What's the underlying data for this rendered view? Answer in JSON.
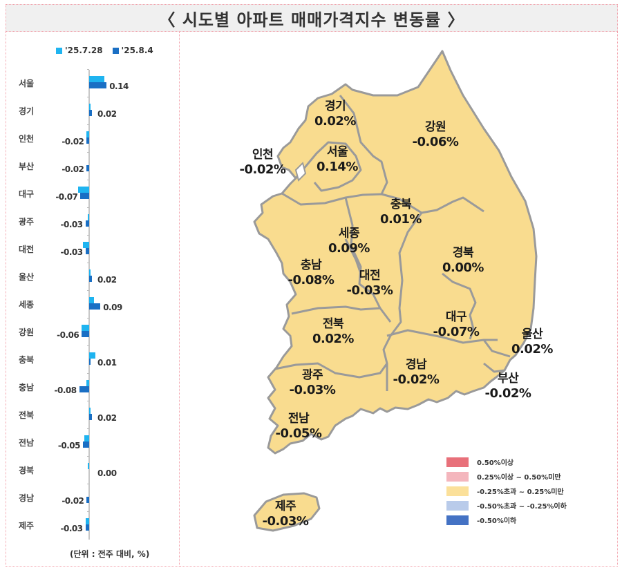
{
  "title": "〈 시도별 아파트 매매가격지수 변동률 〉",
  "chart_data": [
    {
      "type": "bar",
      "orientation": "horizontal",
      "title": "시도별 아파트 매매가격지수 변동률",
      "unit_note": "(단위 : 전주 대비, %)",
      "legend_position": "top",
      "categories": [
        "서울",
        "경기",
        "인천",
        "부산",
        "대구",
        "광주",
        "대전",
        "울산",
        "세종",
        "강원",
        "충북",
        "충남",
        "전북",
        "전남",
        "경북",
        "경남",
        "제주"
      ],
      "series": [
        {
          "name": "'25.7.28",
          "color": "#1fb4f0",
          "values": [
            0.12,
            0.01,
            -0.02,
            0.0,
            -0.09,
            -0.01,
            -0.05,
            0.01,
            0.04,
            -0.06,
            0.05,
            -0.02,
            0.01,
            -0.04,
            -0.01,
            0.0,
            -0.03
          ]
        },
        {
          "name": "'25.8.4",
          "color": "#1a6fc4",
          "values": [
            0.14,
            0.02,
            -0.02,
            -0.02,
            -0.07,
            -0.03,
            -0.03,
            0.02,
            0.09,
            -0.06,
            0.01,
            -0.08,
            0.02,
            -0.05,
            0.0,
            -0.02,
            -0.03
          ]
        }
      ],
      "data_labels": [
        "0.14",
        "0.02",
        "-0.02",
        "-0.02",
        "-0.07",
        "-0.03",
        "-0.03",
        "0.02",
        "0.09",
        "-0.06",
        "0.01",
        "-0.08",
        "0.02",
        "-0.05",
        "0.00",
        "-0.02",
        "-0.03"
      ],
      "grid": false
    },
    {
      "type": "choropleth",
      "title": "시도별 변동률 지도",
      "regions": [
        {
          "name": "경기",
          "value": "0.02%"
        },
        {
          "name": "강원",
          "value": "-0.06%"
        },
        {
          "name": "인천",
          "value": "-0.02%"
        },
        {
          "name": "서울",
          "value": "0.14%"
        },
        {
          "name": "충북",
          "value": "0.01%"
        },
        {
          "name": "세종",
          "value": "0.09%"
        },
        {
          "name": "경북",
          "value": "0.00%"
        },
        {
          "name": "충남",
          "value": "-0.08%"
        },
        {
          "name": "대전",
          "value": "-0.03%"
        },
        {
          "name": "전북",
          "value": "0.02%"
        },
        {
          "name": "대구",
          "value": "-0.07%"
        },
        {
          "name": "울산",
          "value": "0.02%"
        },
        {
          "name": "경남",
          "value": "-0.02%"
        },
        {
          "name": "부산",
          "value": "-0.02%"
        },
        {
          "name": "광주",
          "value": "-0.03%"
        },
        {
          "name": "전남",
          "value": "-0.05%"
        },
        {
          "name": "제주",
          "value": "-0.03%"
        }
      ],
      "legend": [
        {
          "label": "0.50%이상",
          "color": "#e8707a"
        },
        {
          "label": "0.25%이상 ~ 0.50%미만",
          "color": "#f4b6bd"
        },
        {
          "label": "-0.25%초과 ~ 0.25%미만",
          "color": "#fbe09a"
        },
        {
          "label": "-0.50%초과 ~ -0.25%이하",
          "color": "#b9cbea"
        },
        {
          "label": "-0.50%이하",
          "color": "#4472c4"
        }
      ]
    }
  ],
  "colors": {
    "map_fill": "#f9dc8f",
    "map_border": "#9a9a9a",
    "series_a": "#1fb4f0",
    "series_b": "#1a6fc4",
    "panel_border": "#f2a0aa"
  }
}
